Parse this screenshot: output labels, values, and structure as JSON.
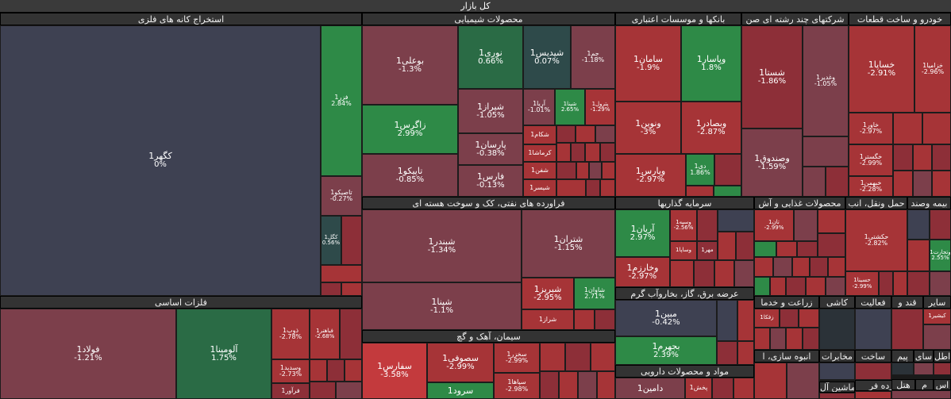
{
  "title": "کل بازار",
  "colors": {
    "dr1": "#7c3f4b",
    "dr2": "#8d2f38",
    "r1": "#a63437",
    "r2": "#c33a3d",
    "g1": "#2e8a47",
    "g2": "#2a6b45",
    "dk": "#3e4152",
    "dt": "#2e4a4a",
    "gry": "#2b3238"
  },
  "sectors": {
    "metal_ore": "استخراج کانه های فلزی",
    "chemical": "محصولات شیمیایی",
    "bank": "بانکها و موسسات اعتباری",
    "multi": "شرکتهای چند رشته ای صن",
    "auto": "خودرو و ساخت قطعات",
    "basic_metals": "فلزات اساسی",
    "oil": "فراورده های نفتی، کک و سوخت هسته ای",
    "invest": "سرمایه گذاریها",
    "food": "محصولات غذایی و آش",
    "transport": "حمل ونقل، انب",
    "insurance": "بیمه وصند",
    "cement": "سیمان، آهک و گچ",
    "power": "عرضه برق، گاز، بخاروآب گرم",
    "pharma": "مواد و محصولات دارویی",
    "agri": "زراعت و خدما",
    "tile": "کاشی",
    "active": "فعالیت",
    "sugar": "قند و",
    "other": "سایر",
    "mass": "انبوه سازی، ا",
    "comm": "مخابرات",
    "build": "ساخت",
    "pim": "پیم",
    "sai": "سای",
    "atl": "اطل",
    "khordefar": "خرده فر",
    "mashin": "ماشین آل",
    "hotel": "هتل",
    "m": "م",
    "s": "اس"
  },
  "stocks": {
    "kagohar": {
      "n": "کگهر1",
      "p": "0%"
    },
    "fazar": {
      "n": "فزر1",
      "p": "2.84%"
    },
    "tasiko": {
      "n": "تاصیکو1",
      "p": "-0.27%"
    },
    "kagol": {
      "n": "کگل1",
      "p": "0.56%"
    },
    "buali": {
      "n": "بوعلی1",
      "p": "-1.3%"
    },
    "nouri": {
      "n": "نوری1",
      "p": "0.66%"
    },
    "shepdis": {
      "n": "شپدیس1",
      "p": "0.07%"
    },
    "jam": {
      "n": "جم1",
      "p": "-1.18%"
    },
    "zagros": {
      "n": "زاگرس1",
      "p": "2.99%"
    },
    "shiraz": {
      "n": "شیراز1",
      "p": "-1.05%"
    },
    "aria": {
      "n": "آریا1",
      "p": "-1.01%"
    },
    "shapna_s": {
      "n": "شپنا1",
      "p": "2.65%"
    },
    "pasargad_s": {
      "n": "پترول1",
      "p": "-1.29%"
    },
    "parsan": {
      "n": "پارسان1",
      "p": "-0.38%"
    },
    "shekam": {
      "n": "شکام1",
      "p": ""
    },
    "kermasha": {
      "n": "کرماشا1",
      "p": ""
    },
    "shafan": {
      "n": "شفن1",
      "p": ""
    },
    "shasir": {
      "n": "شیسر1",
      "p": ""
    },
    "tapiko": {
      "n": "تاپیکو1",
      "p": "-0.85%"
    },
    "fars": {
      "n": "فارس1",
      "p": "-0.13%"
    },
    "saman": {
      "n": "سامان1",
      "p": "-1.9%"
    },
    "vpasar": {
      "n": "وپاسار1",
      "p": "1.8%"
    },
    "vnovin": {
      "n": "ونوین1",
      "p": "-3%"
    },
    "vbsader": {
      "n": "وبصادر1",
      "p": "-2.87%"
    },
    "vpars": {
      "n": "وپارس1",
      "p": "-2.97%"
    },
    "di": {
      "n": "دی1",
      "p": "1.86%"
    },
    "shasta": {
      "n": "شستا1",
      "p": "-1.86%"
    },
    "vghadir": {
      "n": "وغدیر1",
      "p": "-1.05%"
    },
    "vsandogh": {
      "n": "وصندوق1",
      "p": "-1.59%"
    },
    "khsapa": {
      "n": "خساپا1",
      "p": "-2.91%"
    },
    "khzamia": {
      "n": "خزامیا1",
      "p": "-2.96%"
    },
    "khavar": {
      "n": "خاور1",
      "p": "-2.97%"
    },
    "khgostar": {
      "n": "خگستر1",
      "p": "-2.99%"
    },
    "khbahman": {
      "n": "خبهمن1",
      "p": "-2.28%"
    },
    "foolad": {
      "n": "فولاد1",
      "p": "-1.21%"
    },
    "alomina": {
      "n": "آلومینا1",
      "p": "1.75%"
    },
    "zob": {
      "n": "ذوب1",
      "p": "-2.78%"
    },
    "fakhoz": {
      "n": "فباهنر1",
      "p": "-2.68%"
    },
    "vsadid": {
      "n": "وسدید1",
      "p": "-2.73%"
    },
    "faravar": {
      "n": "فرآور1",
      "p": ""
    },
    "shbandar": {
      "n": "شبندر1",
      "p": "-1.34%"
    },
    "shtran": {
      "n": "شتران1",
      "p": "-1.15%"
    },
    "shpana": {
      "n": "شپنا1",
      "p": "-1.1%"
    },
    "shbriz": {
      "n": "شبریز1",
      "p": "-2.95%"
    },
    "shavan": {
      "n": "شاوان1",
      "p": "2.71%"
    },
    "shraz": {
      "n": "شراز1",
      "p": ""
    },
    "arian": {
      "n": "آریان1",
      "p": "2.97%"
    },
    "vsapa": {
      "n": "وسپه1",
      "p": "-2.56%"
    },
    "vsapa2": {
      "n": "وساپا1",
      "p": ""
    },
    "mehr": {
      "n": "مهر1",
      "p": ""
    },
    "vkharazm": {
      "n": "وخارزم1",
      "p": "-2.97%"
    },
    "tan": {
      "n": "تان1",
      "p": "-2.99%"
    },
    "hkeshti": {
      "n": "حکشتی1",
      "p": "-2.82%"
    },
    "hsina": {
      "n": "حسینا1",
      "p": "-2.99%"
    },
    "vtejara": {
      "n": "وتجارت1",
      "p": "2.55%"
    },
    "safars": {
      "n": "سفارس1",
      "p": "-3.58%"
    },
    "sesufi": {
      "n": "سصوفی1",
      "p": "-2.99%"
    },
    "sarud": {
      "n": "سرود1",
      "p": ""
    },
    "skhazar": {
      "n": "سخزر1",
      "p": "-2.99%"
    },
    "sipaha": {
      "n": "سپاها1",
      "p": "-2.98%"
    },
    "mabin": {
      "n": "مبین1",
      "p": "-0.42%"
    },
    "bahram": {
      "n": "بجهرم1",
      "p": "2.39%"
    },
    "damin": {
      "n": "دامین1",
      "p": ""
    },
    "pakhsh": {
      "n": "پخش1",
      "p": ""
    },
    "zafka": {
      "n": "زفکا1",
      "p": ""
    },
    "kishir": {
      "n": "کیشیر1",
      "p": ""
    }
  }
}
